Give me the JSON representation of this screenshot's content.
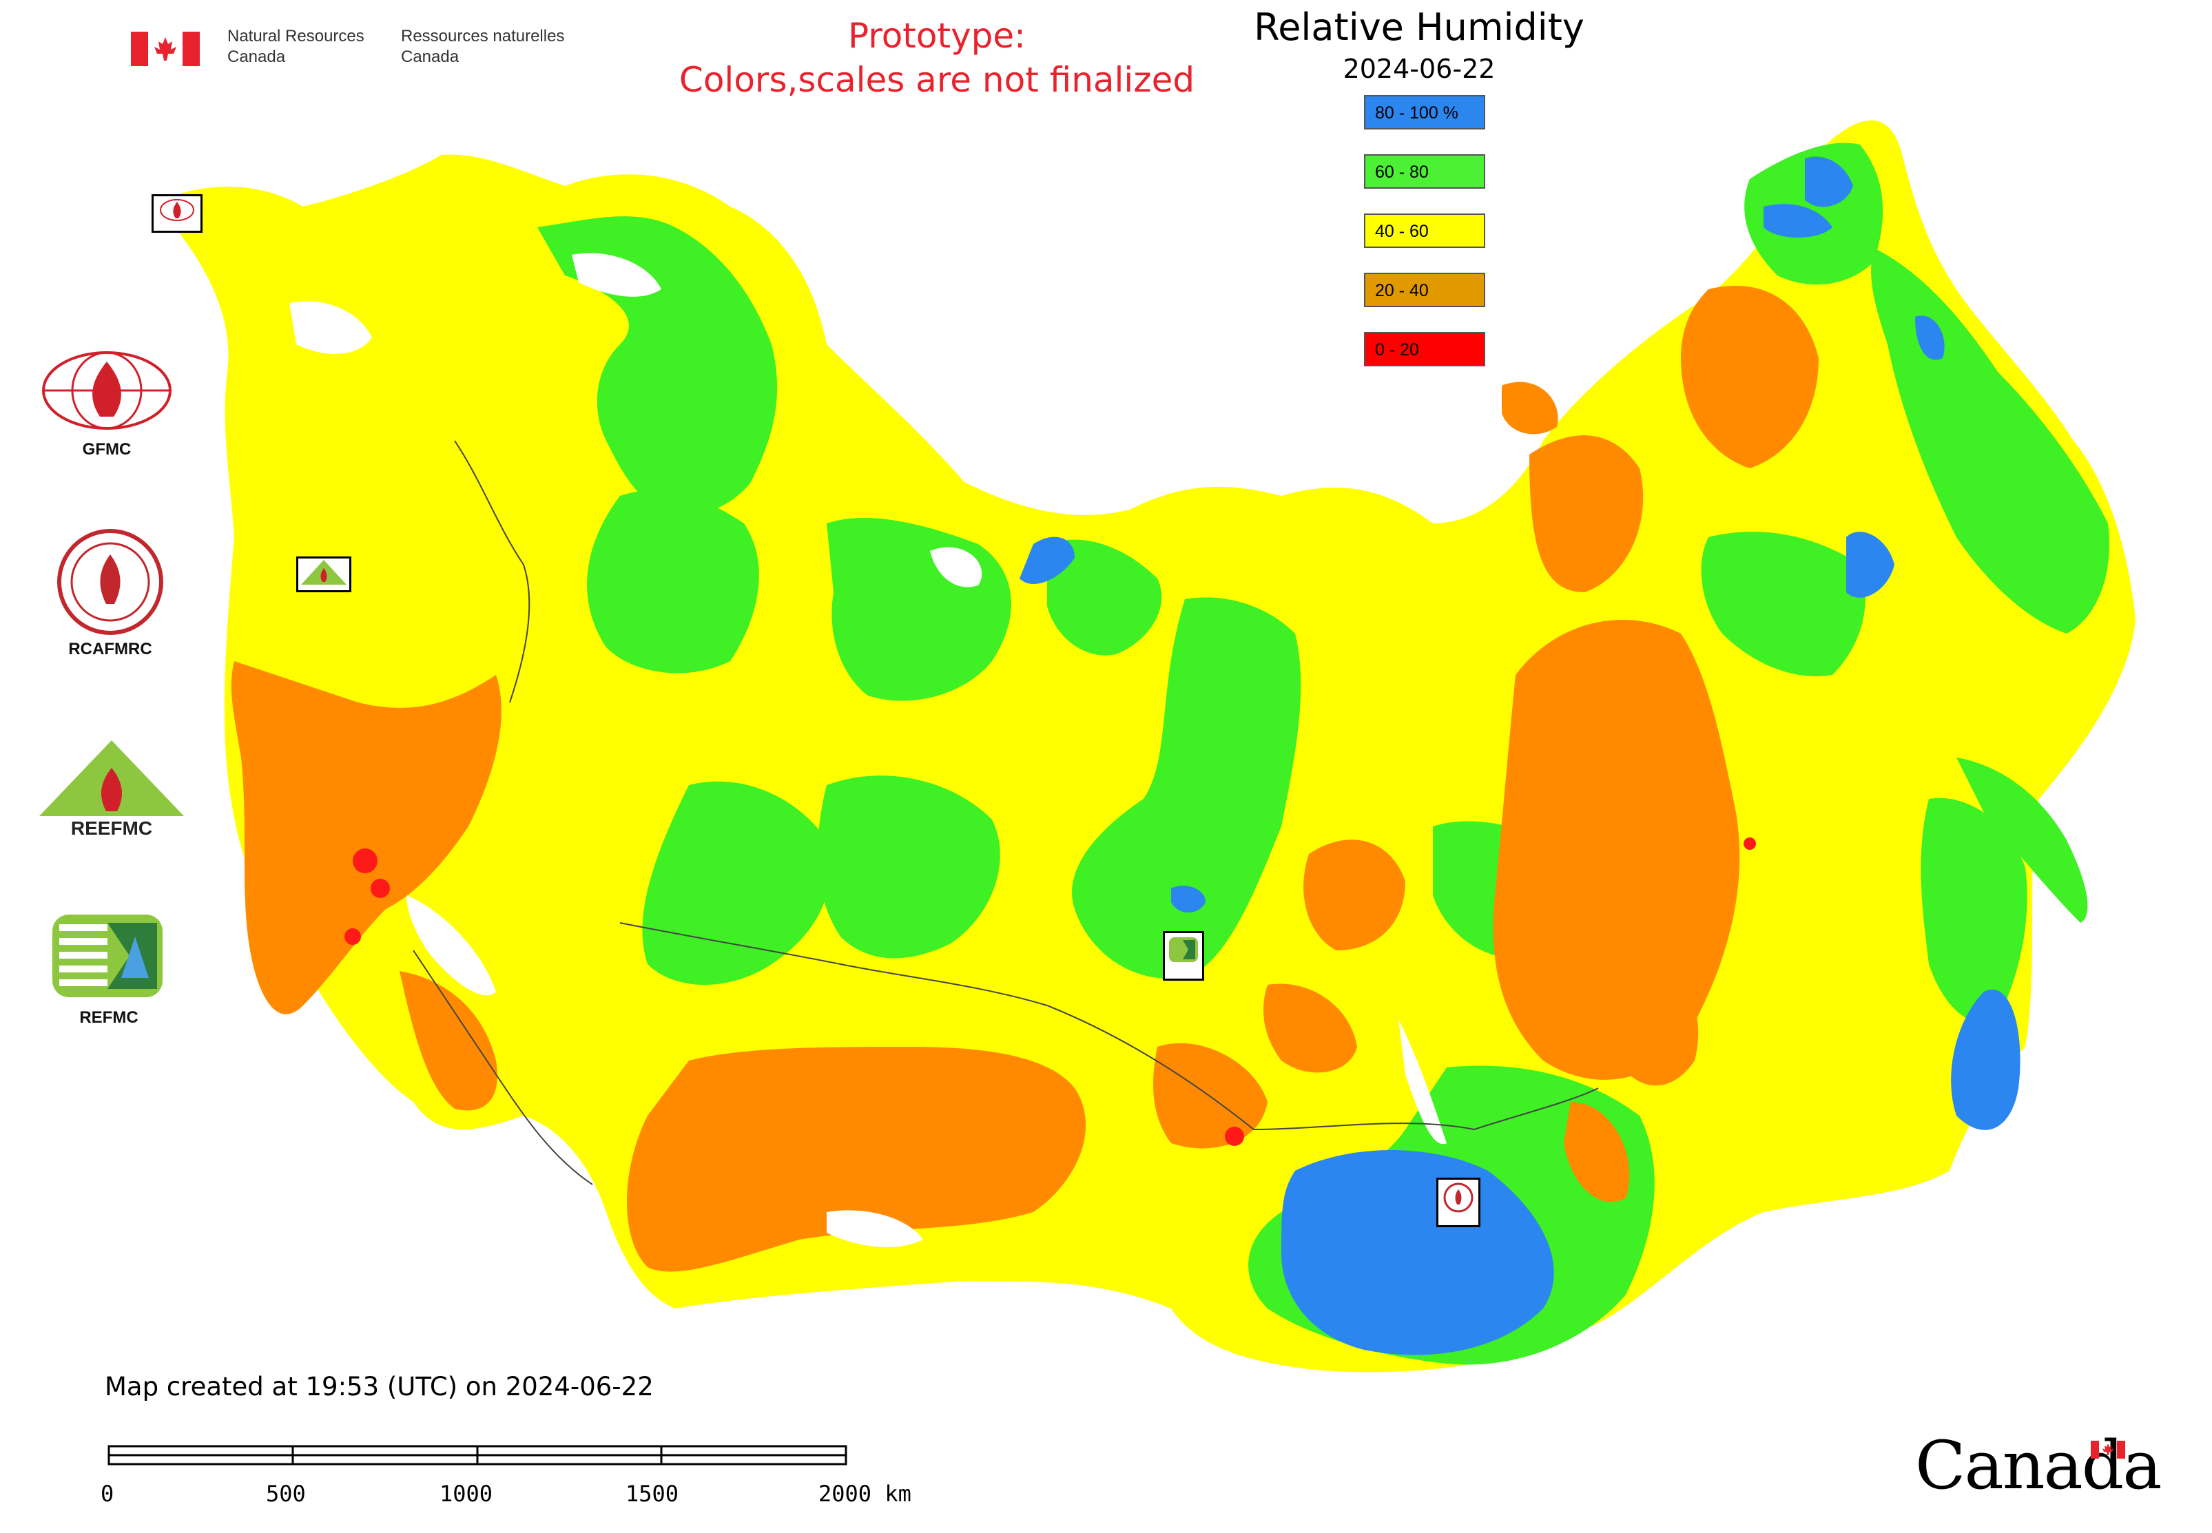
{
  "header": {
    "agency_en_line1": "Natural Resources",
    "agency_en_line2": "Canada",
    "agency_fr_line1": "Ressources naturelles",
    "agency_fr_line2": "Canada",
    "flag_icon": "canada-flag-icon"
  },
  "prototype_notice": {
    "line1": "Prototype:",
    "line2": "Colors,scales are not finalized",
    "color": "#e8232d"
  },
  "legend": {
    "title": "Relative Humidity",
    "date": "2024-06-22",
    "classes": [
      {
        "label": "80 - 100 %",
        "color": "#2b86f0"
      },
      {
        "label": "60 - 80",
        "color": "#4cf035"
      },
      {
        "label": "40 - 60",
        "color": "#ffff00"
      },
      {
        "label": "20 - 40",
        "color": "#e09a00"
      },
      {
        "label": "0 - 20",
        "color": "#ff0000"
      }
    ]
  },
  "map_colors": {
    "blue": "#2b86f0",
    "green": "#3ef024",
    "yellow": "#ffff00",
    "orange": "#ff8a00",
    "red": "#ff1a1a",
    "water": "#ffffff",
    "border": "#444444"
  },
  "side_logos": [
    {
      "name": "GFMC",
      "caption": "GFMC"
    },
    {
      "name": "RCAFMRC",
      "caption": "RCAFMRC"
    },
    {
      "name": "REEFMC",
      "caption": "REEFMC"
    },
    {
      "name": "REFMC",
      "caption": "REFMC"
    }
  ],
  "footer": {
    "created_text": "Map created at 19:53 (UTC) on 2024-06-22",
    "scale_ticks": [
      "0",
      "500",
      "1000",
      "1500",
      "2000 km"
    ],
    "wordmark": "Canada"
  }
}
